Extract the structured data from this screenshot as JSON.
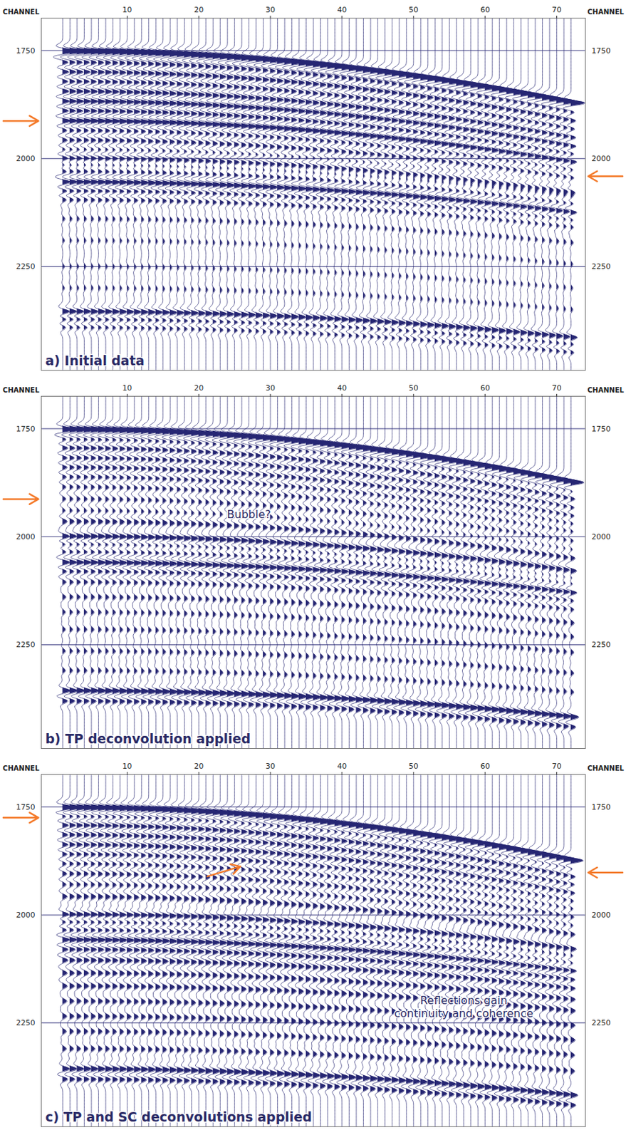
{
  "chart_data": [
    {
      "type": "wiggle",
      "title": "a) Initial data",
      "xlabel": "CHANNEL",
      "xlim": [
        -2,
        74
      ],
      "xticks": [
        10,
        20,
        30,
        40,
        50,
        60,
        70
      ],
      "ylim": [
        1675,
        2490
      ],
      "yticks": [
        1750,
        2000,
        2250
      ],
      "grid": true,
      "color": "#262673",
      "channels": {
        "first": 1,
        "last": 72
      },
      "events": {
        "t_first": [
          1752,
          1778,
          1800,
          1822,
          1845,
          1868,
          1890,
          1913,
          1935,
          1958,
          1980,
          2000,
          2015,
          2030,
          2055,
          2075,
          2095,
          2140,
          2190,
          2250,
          2300,
          2355,
          2372,
          2390
        ],
        "t_last": [
          1872,
          1893,
          1913,
          1932,
          1952,
          1972,
          1990,
          2008,
          2026,
          2045,
          2062,
          2078,
          2090,
          2105,
          2125,
          2142,
          2158,
          2195,
          2245,
          2300,
          2350,
          2415,
          2430,
          2448
        ],
        "amp": [
          1.6,
          0.7,
          0.8,
          0.7,
          0.8,
          0.9,
          0.8,
          1.0,
          0.6,
          0.6,
          0.5,
          1.0,
          0.9,
          0.8,
          1.0,
          0.7,
          0.5,
          0.25,
          0.2,
          0.2,
          0.2,
          1.0,
          0.8,
          0.5
        ]
      },
      "annotations": [],
      "arrows": [
        {
          "x1": -7.3,
          "y1": 1913,
          "x2": -2.4,
          "y2": 1913,
          "color": "#f47a2a"
        },
        {
          "x1": 79.2,
          "y1": 2041,
          "x2": 74.4,
          "y2": 2041,
          "color": "#f47a2a"
        }
      ]
    },
    {
      "type": "wiggle",
      "title": "b) TP deconvolution applied",
      "xlabel": "CHANNEL",
      "xlim": [
        -2,
        74
      ],
      "xticks": [
        10,
        20,
        30,
        40,
        50,
        60,
        70
      ],
      "ylim": [
        1675,
        2490
      ],
      "yticks": [
        1750,
        2000,
        2250
      ],
      "grid": true,
      "color": "#262673",
      "channels": {
        "first": 1,
        "last": 72
      },
      "events": {
        "t_first": [
          1752,
          1775,
          1795,
          1818,
          1840,
          1862,
          1885,
          1913,
          1940,
          1965,
          2000,
          2018,
          2035,
          2060,
          2080,
          2105,
          2140,
          2175,
          2215,
          2265,
          2310,
          2357,
          2380
        ],
        "t_last": [
          1875,
          1895,
          1913,
          1933,
          1952,
          1970,
          1988,
          2010,
          2030,
          2050,
          2080,
          2095,
          2110,
          2130,
          2148,
          2168,
          2200,
          2232,
          2268,
          2316,
          2360,
          2418,
          2440
        ],
        "amp": [
          1.5,
          0.6,
          0.7,
          0.6,
          0.6,
          0.5,
          0.4,
          0.35,
          0.3,
          0.5,
          0.9,
          0.7,
          0.6,
          0.9,
          0.6,
          0.4,
          0.35,
          0.3,
          0.3,
          0.3,
          0.3,
          0.9,
          0.6
        ]
      },
      "annotations": [
        {
          "text": "Bubble?",
          "x": 27,
          "y": 1948
        }
      ],
      "arrows": [
        {
          "x1": -7.3,
          "y1": 1913,
          "x2": -2.4,
          "y2": 1913,
          "color": "#f47a2a"
        }
      ]
    },
    {
      "type": "wiggle",
      "title": "c) TP and SC deconvolutions applied",
      "xlabel": "CHANNEL",
      "xlim": [
        -2,
        74
      ],
      "xticks": [
        10,
        20,
        30,
        40,
        50,
        60,
        70
      ],
      "ylim": [
        1675,
        2490
      ],
      "yticks": [
        1750,
        2000,
        2250
      ],
      "grid": true,
      "color": "#262673",
      "channels": {
        "first": 1,
        "last": 72
      },
      "events": {
        "t_first": [
          1752,
          1772,
          1793,
          1815,
          1838,
          1860,
          1882,
          1905,
          1930,
          1958,
          2000,
          2017,
          2035,
          2058,
          2080,
          2105,
          2135,
          2165,
          2200,
          2235,
          2270,
          2310,
          2357,
          2380
        ],
        "t_last": [
          1875,
          1893,
          1912,
          1930,
          1950,
          1968,
          1986,
          2005,
          2025,
          2045,
          2080,
          2095,
          2112,
          2130,
          2150,
          2170,
          2196,
          2222,
          2256,
          2290,
          2325,
          2362,
          2418,
          2440
        ],
        "amp": [
          1.5,
          0.7,
          0.8,
          0.7,
          0.7,
          0.6,
          0.5,
          0.5,
          0.4,
          0.5,
          0.9,
          0.8,
          0.7,
          0.9,
          0.7,
          0.6,
          0.5,
          0.5,
          0.45,
          0.45,
          0.4,
          0.4,
          0.8,
          0.6
        ]
      },
      "annotations": [
        {
          "text": "Reflections gain\ncontinuity and coherence",
          "x": 57,
          "y": 2212
        }
      ],
      "arrows": [
        {
          "x1": -7.3,
          "y1": 1775,
          "x2": -2.4,
          "y2": 1775,
          "color": "#f47a2a"
        },
        {
          "x1": 79.2,
          "y1": 1902,
          "x2": 74.4,
          "y2": 1902,
          "color": "#f47a2a"
        },
        {
          "x1": 21.2,
          "y1": 1911,
          "x2": 25.8,
          "y2": 1888,
          "color": "#f47a2a"
        }
      ]
    }
  ]
}
